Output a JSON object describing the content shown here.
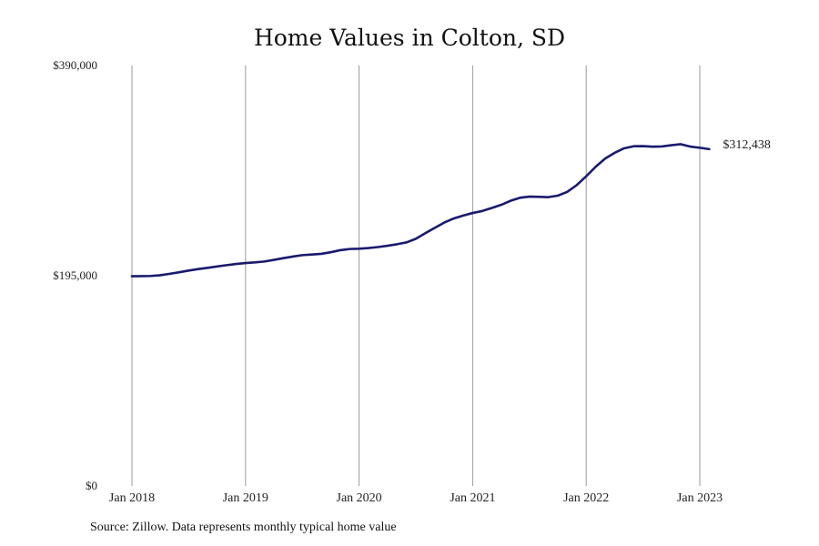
{
  "chart_data": {
    "type": "line",
    "title": "Home Values in Colton, SD",
    "xlabel": "",
    "ylabel": "",
    "ylim": [
      0,
      390000
    ],
    "y_ticks": [
      "$0",
      "$195,000",
      "$390,000"
    ],
    "y_tick_values": [
      0,
      195000,
      390000
    ],
    "x_ticks": [
      "Jan 2018",
      "Jan 2019",
      "Jan 2020",
      "Jan 2021",
      "Jan 2022",
      "Jan 2023"
    ],
    "x_tick_values": [
      "2018-01",
      "2019-01",
      "2020-01",
      "2021-01",
      "2022-01",
      "2023-01"
    ],
    "xlim": [
      "2018-01",
      "2023-03"
    ],
    "grid": "vertical",
    "line_color": "#1a1a6e",
    "end_label": "$312,438",
    "series": [
      {
        "x": [
          "2018-01",
          "2018-02",
          "2018-03",
          "2018-04",
          "2018-05",
          "2018-06",
          "2018-07",
          "2018-08",
          "2018-09",
          "2018-10",
          "2018-11",
          "2018-12",
          "2019-01",
          "2019-02",
          "2019-03",
          "2019-04",
          "2019-05",
          "2019-06",
          "2019-07",
          "2019-08",
          "2019-09",
          "2019-10",
          "2019-11",
          "2019-12",
          "2020-01",
          "2020-02",
          "2020-03",
          "2020-04",
          "2020-05",
          "2020-06",
          "2020-07",
          "2020-08",
          "2020-09",
          "2020-10",
          "2020-11",
          "2020-12",
          "2021-01",
          "2021-02",
          "2021-03",
          "2021-04",
          "2021-05",
          "2021-06",
          "2021-07",
          "2021-08",
          "2021-09",
          "2021-10",
          "2021-11",
          "2021-12",
          "2022-01",
          "2022-02",
          "2022-03",
          "2022-04",
          "2022-05",
          "2022-06",
          "2022-07",
          "2022-08",
          "2022-09",
          "2022-10",
          "2022-11",
          "2022-12",
          "2023-01",
          "2023-02"
        ],
        "values": [
          194500,
          194600,
          194800,
          195500,
          196800,
          198200,
          199800,
          201200,
          202300,
          203600,
          204800,
          205900,
          206800,
          207400,
          208200,
          209700,
          211300,
          212800,
          214100,
          214700,
          215300,
          216800,
          218700,
          219800,
          220100,
          220700,
          221600,
          222800,
          224200,
          225900,
          229300,
          234500,
          239400,
          244300,
          248100,
          250800,
          253200,
          255000,
          257800,
          260700,
          264500,
          267300,
          268400,
          268200,
          267900,
          269300,
          272800,
          279100,
          287300,
          296100,
          303700,
          309000,
          313200,
          315100,
          315200,
          314700,
          314900,
          316100,
          317000,
          314800,
          313700,
          312438
        ]
      }
    ]
  },
  "source_note": "Source: Zillow. Data represents monthly typical home value"
}
